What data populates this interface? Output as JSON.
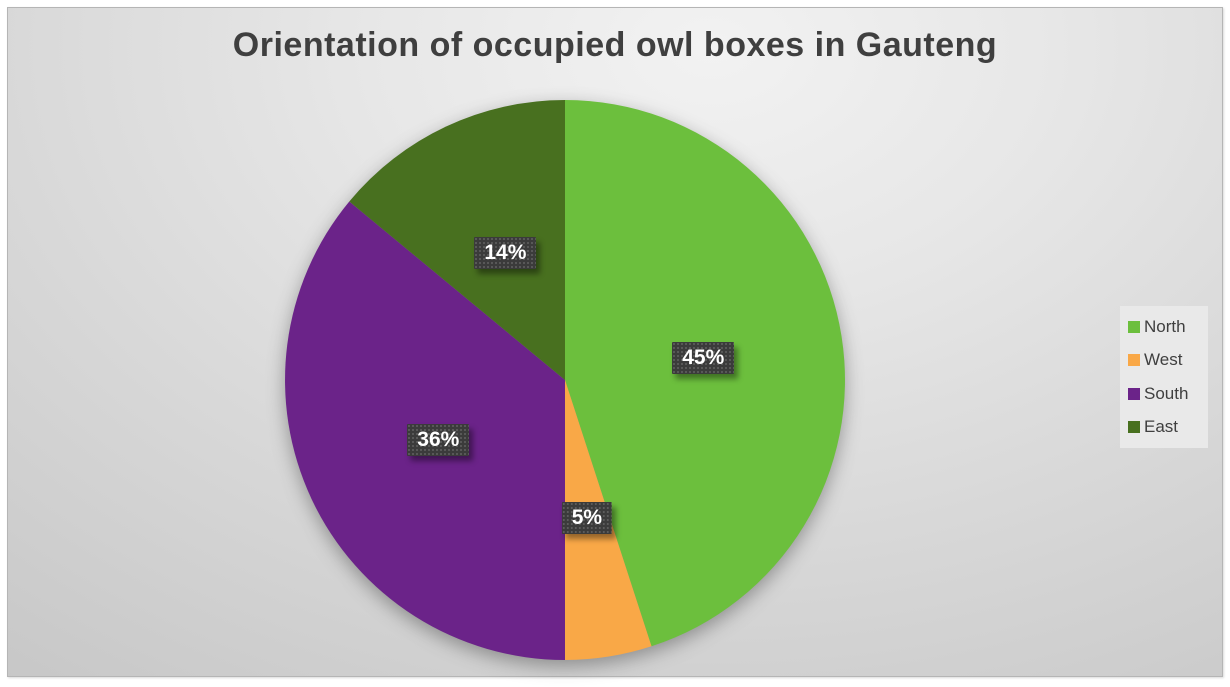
{
  "chart_data": {
    "type": "pie",
    "title": "Orientation of occupied owl boxes in Gauteng",
    "start_angle_deg": 0,
    "direction": "clockwise",
    "legend_position": "right",
    "slices": [
      {
        "name": "North",
        "value": 45,
        "display": "45%",
        "color": "#6CBF3D"
      },
      {
        "name": "West",
        "value": 5,
        "display": "5%",
        "color": "#F9A847"
      },
      {
        "name": "South",
        "value": 36,
        "display": "36%",
        "color": "#6B2389"
      },
      {
        "name": "East",
        "value": 14,
        "display": "14%",
        "color": "#48701F"
      }
    ],
    "data_label_style": {
      "background": "#3B3B3B",
      "text_color": "#FFFFFF"
    },
    "title_color": "#3F3F3F",
    "legend_text_color": "#3F3F3F",
    "legend_background": "#E9E9E9"
  }
}
